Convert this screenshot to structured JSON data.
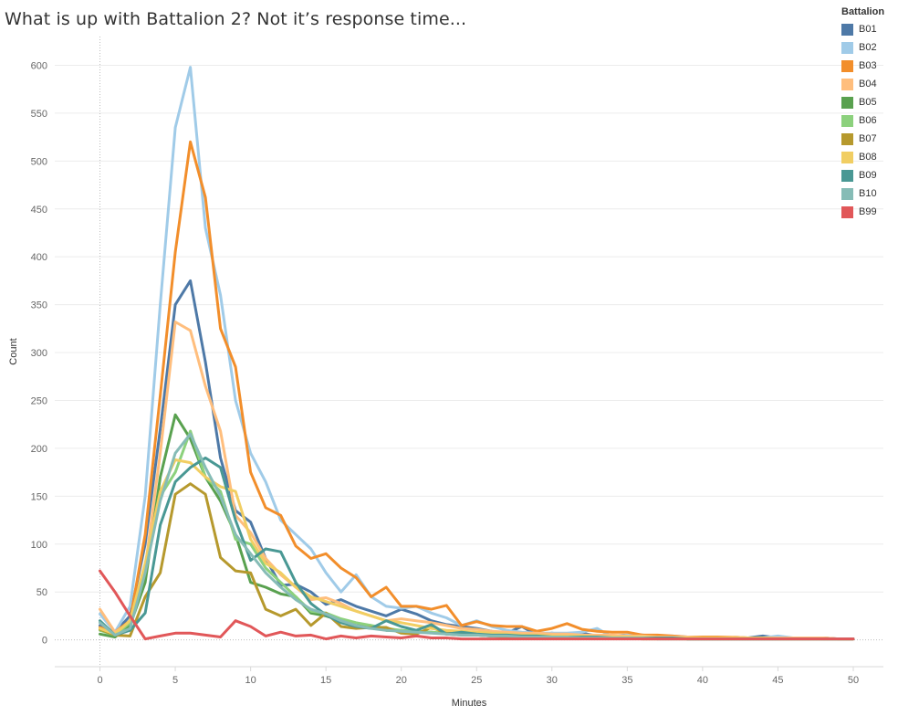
{
  "chart_data": {
    "type": "line",
    "title": "What is up with Battalion 2? Not it’s response time...",
    "xlabel": "Minutes",
    "ylabel": "Count",
    "xlim": [
      -3,
      52
    ],
    "ylim": [
      -28,
      630
    ],
    "xticks": [
      0,
      5,
      10,
      15,
      20,
      25,
      30,
      35,
      40,
      45,
      50
    ],
    "yticks": [
      0,
      50,
      100,
      150,
      200,
      250,
      300,
      350,
      400,
      450,
      500,
      550,
      600
    ],
    "grid": true,
    "legend_title": "Battalion",
    "legend_position": "top-right",
    "series": [
      {
        "name": "B01",
        "color": "#4e79a7",
        "x": [
          0,
          1,
          2,
          3,
          4,
          5,
          6,
          7,
          8,
          9,
          10,
          11,
          12,
          13,
          14,
          15,
          16,
          17,
          18,
          19,
          20,
          21,
          22,
          23,
          24,
          25,
          26,
          27,
          28,
          29,
          30,
          31,
          32,
          33,
          34,
          35,
          36,
          37,
          38,
          39,
          40,
          41,
          42,
          43,
          44,
          45,
          46,
          47,
          48,
          49,
          50
        ],
        "values": [
          15,
          8,
          25,
          100,
          220,
          350,
          375,
          290,
          190,
          135,
          123,
          85,
          57,
          58,
          50,
          37,
          42,
          35,
          30,
          25,
          32,
          27,
          20,
          16,
          14,
          12,
          9,
          7,
          14,
          5,
          7,
          5,
          7,
          4,
          4,
          5,
          5,
          4,
          3,
          2,
          2,
          2,
          2,
          2,
          4,
          2,
          2,
          2,
          2,
          1,
          1
        ]
      },
      {
        "name": "B02",
        "color": "#a0cbe8",
        "x": [
          0,
          1,
          2,
          3,
          4,
          5,
          6,
          7,
          8,
          9,
          10,
          11,
          12,
          13,
          14,
          15,
          16,
          17,
          18,
          19,
          20,
          21,
          22,
          23,
          24,
          25,
          26,
          27,
          28,
          29,
          30,
          31,
          32,
          33,
          34,
          35,
          36,
          37,
          38,
          39,
          40,
          41,
          42,
          43,
          44,
          45,
          46,
          47,
          48,
          49,
          50
        ],
        "values": [
          27,
          8,
          35,
          150,
          350,
          535,
          598,
          430,
          360,
          250,
          195,
          165,
          125,
          110,
          95,
          70,
          50,
          68,
          45,
          35,
          33,
          35,
          28,
          23,
          15,
          20,
          14,
          10,
          8,
          7,
          7,
          7,
          8,
          12,
          3,
          5,
          5,
          4,
          4,
          3,
          3,
          3,
          3,
          2,
          2,
          4,
          2,
          2,
          1,
          1,
          1
        ]
      },
      {
        "name": "B03",
        "color": "#f28e2b",
        "x": [
          0,
          1,
          2,
          3,
          4,
          5,
          6,
          7,
          8,
          9,
          10,
          11,
          12,
          13,
          14,
          15,
          16,
          17,
          18,
          19,
          20,
          21,
          22,
          23,
          24,
          25,
          26,
          27,
          28,
          29,
          30,
          31,
          32,
          33,
          34,
          35,
          36,
          37,
          38,
          39,
          40,
          41,
          42,
          43,
          44,
          45,
          46,
          47,
          48,
          49,
          50
        ],
        "values": [
          13,
          8,
          20,
          110,
          255,
          405,
          520,
          462,
          325,
          285,
          175,
          138,
          130,
          98,
          85,
          90,
          75,
          65,
          45,
          55,
          35,
          35,
          32,
          36,
          15,
          19,
          15,
          14,
          14,
          9,
          12,
          17,
          11,
          9,
          8,
          8,
          5,
          5,
          4,
          3,
          3,
          3,
          3,
          2,
          2,
          2,
          2,
          2,
          2,
          1,
          1
        ]
      },
      {
        "name": "B04",
        "color": "#ffbe7d",
        "x": [
          0,
          1,
          2,
          3,
          4,
          5,
          6,
          7,
          8,
          9,
          10,
          11,
          12,
          13,
          14,
          15,
          16,
          17,
          18,
          19,
          20,
          21,
          22,
          23,
          24,
          25,
          26,
          27,
          28,
          29,
          30,
          31,
          32,
          33,
          34,
          35,
          36,
          37,
          38,
          39,
          40,
          41,
          42,
          43,
          44,
          45,
          46,
          47,
          48,
          49,
          50
        ],
        "values": [
          32,
          8,
          18,
          75,
          195,
          332,
          323,
          265,
          218,
          130,
          112,
          85,
          68,
          55,
          42,
          44,
          38,
          30,
          25,
          20,
          22,
          20,
          18,
          15,
          12,
          11,
          9,
          8,
          7,
          7,
          6,
          6,
          5,
          5,
          5,
          4,
          4,
          3,
          3,
          3,
          2,
          2,
          3,
          2,
          2,
          2,
          2,
          2,
          2,
          1,
          1
        ]
      },
      {
        "name": "B05",
        "color": "#59a14f",
        "x": [
          0,
          1,
          2,
          3,
          4,
          5,
          6,
          7,
          8,
          9,
          10,
          11,
          12,
          13,
          14,
          15,
          16,
          17,
          18,
          19,
          20,
          21,
          22,
          23,
          24,
          25,
          26,
          27,
          28,
          29,
          30,
          31,
          32,
          33,
          34,
          35,
          36,
          37,
          38,
          39,
          40,
          41,
          42,
          43,
          44,
          45,
          46,
          47,
          48,
          49,
          50
        ],
        "values": [
          6,
          3,
          15,
          60,
          170,
          235,
          210,
          170,
          145,
          110,
          60,
          55,
          48,
          45,
          28,
          25,
          20,
          15,
          15,
          10,
          10,
          8,
          8,
          6,
          5,
          5,
          4,
          4,
          3,
          3,
          3,
          3,
          2,
          2,
          2,
          2,
          2,
          2,
          2,
          1,
          1,
          1,
          1,
          1,
          1,
          1,
          1,
          1,
          1,
          1,
          1
        ]
      },
      {
        "name": "B06",
        "color": "#8cd17d",
        "x": [
          0,
          1,
          2,
          3,
          4,
          5,
          6,
          7,
          8,
          9,
          10,
          11,
          12,
          13,
          14,
          15,
          16,
          17,
          18,
          19,
          20,
          21,
          22,
          23,
          24,
          25,
          26,
          27,
          28,
          29,
          30,
          31,
          32,
          33,
          34,
          35,
          36,
          37,
          38,
          39,
          40,
          41,
          42,
          43,
          44,
          45,
          46,
          47,
          48,
          49,
          50
        ],
        "values": [
          10,
          5,
          18,
          75,
          150,
          175,
          218,
          170,
          155,
          105,
          100,
          75,
          60,
          45,
          30,
          28,
          22,
          18,
          15,
          12,
          10,
          9,
          8,
          7,
          6,
          5,
          5,
          4,
          4,
          3,
          3,
          3,
          3,
          2,
          2,
          2,
          2,
          2,
          2,
          1,
          1,
          1,
          1,
          1,
          1,
          1,
          1,
          1,
          1,
          1,
          1
        ]
      },
      {
        "name": "B07",
        "color": "#b6992d",
        "x": [
          0,
          1,
          2,
          3,
          4,
          5,
          6,
          7,
          8,
          9,
          10,
          11,
          12,
          13,
          14,
          15,
          16,
          17,
          18,
          19,
          20,
          21,
          22,
          23,
          24,
          25,
          26,
          27,
          28,
          29,
          30,
          31,
          32,
          33,
          34,
          35,
          36,
          37,
          38,
          39,
          40,
          41,
          42,
          43,
          44,
          45,
          46,
          47,
          48,
          49,
          50
        ],
        "values": [
          11,
          5,
          4,
          45,
          70,
          152,
          163,
          152,
          86,
          72,
          70,
          32,
          25,
          32,
          15,
          28,
          14,
          12,
          13,
          13,
          7,
          6,
          13,
          7,
          7,
          5,
          4,
          3,
          3,
          3,
          2,
          2,
          2,
          2,
          2,
          2,
          1,
          1,
          1,
          1,
          1,
          1,
          1,
          1,
          1,
          1,
          1,
          1,
          1,
          1,
          1
        ]
      },
      {
        "name": "B08",
        "color": "#f1ce63",
        "x": [
          0,
          1,
          2,
          3,
          4,
          5,
          6,
          7,
          8,
          9,
          10,
          11,
          12,
          13,
          14,
          15,
          16,
          17,
          18,
          19,
          20,
          21,
          22,
          23,
          24,
          25,
          26,
          27,
          28,
          29,
          30,
          31,
          32,
          33,
          34,
          35,
          36,
          37,
          38,
          39,
          40,
          41,
          42,
          43,
          44,
          45,
          46,
          47,
          48,
          49,
          50
        ],
        "values": [
          12,
          6,
          20,
          80,
          155,
          188,
          185,
          170,
          160,
          155,
          105,
          80,
          70,
          55,
          45,
          40,
          35,
          30,
          25,
          20,
          18,
          15,
          12,
          10,
          9,
          8,
          7,
          6,
          5,
          5,
          4,
          4,
          4,
          3,
          3,
          3,
          3,
          2,
          2,
          2,
          2,
          2,
          2,
          2,
          2,
          1,
          1,
          1,
          1,
          1,
          1
        ]
      },
      {
        "name": "B09",
        "color": "#499894",
        "x": [
          0,
          1,
          2,
          3,
          4,
          5,
          6,
          7,
          8,
          9,
          10,
          11,
          12,
          13,
          14,
          15,
          16,
          17,
          18,
          19,
          20,
          21,
          22,
          23,
          24,
          25,
          26,
          27,
          28,
          29,
          30,
          31,
          32,
          33,
          34,
          35,
          36,
          37,
          38,
          39,
          40,
          41,
          42,
          43,
          44,
          45,
          46,
          47,
          48,
          49,
          50
        ],
        "values": [
          20,
          5,
          10,
          28,
          120,
          165,
          180,
          190,
          180,
          125,
          83,
          95,
          92,
          60,
          38,
          26,
          18,
          14,
          12,
          20,
          14,
          10,
          16,
          6,
          8,
          6,
          5,
          5,
          4,
          4,
          3,
          3,
          3,
          3,
          2,
          2,
          2,
          2,
          2,
          1,
          1,
          1,
          1,
          1,
          1,
          1,
          1,
          1,
          1,
          1,
          1
        ]
      },
      {
        "name": "B10",
        "color": "#86bcb6",
        "x": [
          0,
          1,
          2,
          3,
          4,
          5,
          6,
          7,
          8,
          9,
          10,
          11,
          12,
          13,
          14,
          15,
          16,
          17,
          18,
          19,
          20,
          21,
          22,
          23,
          24,
          25,
          26,
          27,
          28,
          29,
          30,
          31,
          32,
          33,
          34,
          35,
          36,
          37,
          38,
          39,
          40,
          41,
          42,
          43,
          44,
          45,
          46,
          47,
          48,
          49,
          50
        ],
        "values": [
          18,
          5,
          12,
          70,
          145,
          195,
          215,
          180,
          150,
          110,
          90,
          70,
          55,
          42,
          32,
          27,
          20,
          15,
          12,
          10,
          9,
          8,
          7,
          6,
          5,
          5,
          4,
          4,
          3,
          3,
          3,
          3,
          2,
          2,
          2,
          2,
          2,
          1,
          1,
          1,
          1,
          1,
          1,
          1,
          1,
          1,
          1,
          1,
          1,
          1,
          1
        ]
      },
      {
        "name": "B99",
        "color": "#e15759",
        "x": [
          0,
          1,
          2,
          3,
          4,
          5,
          6,
          7,
          8,
          9,
          10,
          11,
          12,
          13,
          14,
          15,
          16,
          17,
          18,
          19,
          20,
          21,
          22,
          23,
          24,
          25,
          26,
          27,
          28,
          29,
          30,
          31,
          32,
          33,
          34,
          35,
          36,
          37,
          38,
          39,
          40,
          41,
          42,
          43,
          44,
          45,
          46,
          47,
          48,
          49,
          50
        ],
        "values": [
          72,
          50,
          25,
          1,
          4,
          7,
          7,
          5,
          3,
          20,
          14,
          4,
          8,
          4,
          5,
          1,
          4,
          2,
          4,
          3,
          2,
          4,
          2,
          2,
          1,
          1,
          1,
          1,
          1,
          1,
          1,
          1,
          1,
          1,
          1,
          1,
          1,
          1,
          1,
          1,
          1,
          1,
          1,
          1,
          1,
          1,
          1,
          1,
          1,
          1,
          1
        ]
      }
    ]
  }
}
